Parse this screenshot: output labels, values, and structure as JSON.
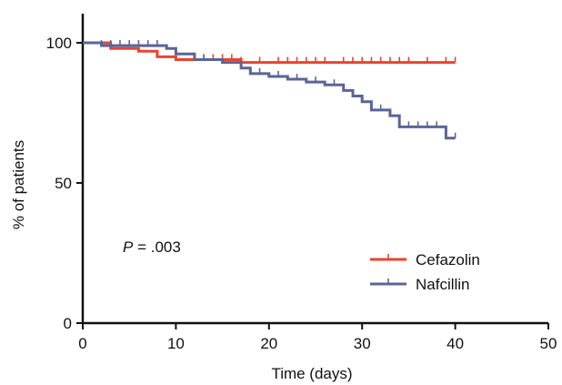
{
  "chart_data": {
    "type": "line",
    "subtype": "kaplan-meier",
    "xlabel": "Time (days)",
    "ylabel": "% of patients",
    "xlim": [
      0,
      50
    ],
    "ylim": [
      0,
      100
    ],
    "xticks": [
      0,
      10,
      20,
      30,
      40,
      50
    ],
    "yticks": [
      0,
      50,
      100
    ],
    "grid": false,
    "legend_position": "bottom-right",
    "annotation": {
      "italic": "P",
      "rest": " = .003"
    },
    "series": [
      {
        "name": "Cefazolin",
        "color": "#e8452e",
        "steps": [
          [
            0,
            100
          ],
          [
            3,
            100
          ],
          [
            3,
            98
          ],
          [
            6,
            98
          ],
          [
            6,
            97
          ],
          [
            8,
            97
          ],
          [
            8,
            95
          ],
          [
            10,
            95
          ],
          [
            10,
            94
          ],
          [
            17,
            94
          ],
          [
            17,
            93
          ],
          [
            40,
            93
          ]
        ],
        "censors": [
          13,
          14,
          15,
          16,
          17,
          19,
          21,
          22,
          23,
          24,
          25,
          26,
          28,
          29,
          30,
          31,
          32,
          33,
          34,
          35,
          37,
          39,
          40
        ]
      },
      {
        "name": "Nafcillin",
        "color": "#5a6496",
        "steps": [
          [
            0,
            100
          ],
          [
            2,
            100
          ],
          [
            2,
            99
          ],
          [
            9,
            99
          ],
          [
            9,
            98
          ],
          [
            10,
            98
          ],
          [
            10,
            96
          ],
          [
            12,
            96
          ],
          [
            12,
            94
          ],
          [
            15,
            94
          ],
          [
            15,
            93
          ],
          [
            17,
            93
          ],
          [
            17,
            91
          ],
          [
            18,
            91
          ],
          [
            18,
            89
          ],
          [
            20,
            89
          ],
          [
            20,
            88
          ],
          [
            22,
            88
          ],
          [
            22,
            87
          ],
          [
            24,
            87
          ],
          [
            24,
            86
          ],
          [
            26,
            86
          ],
          [
            26,
            85
          ],
          [
            28,
            85
          ],
          [
            28,
            83
          ],
          [
            29,
            83
          ],
          [
            29,
            81
          ],
          [
            30,
            81
          ],
          [
            30,
            79
          ],
          [
            31,
            79
          ],
          [
            31,
            76
          ],
          [
            33,
            76
          ],
          [
            33,
            74
          ],
          [
            34,
            74
          ],
          [
            34,
            70
          ],
          [
            39,
            70
          ],
          [
            39,
            66
          ],
          [
            40,
            66
          ]
        ],
        "censors": [
          2,
          3,
          4,
          5,
          6,
          7,
          8,
          13,
          19,
          21,
          23,
          25,
          27,
          30,
          32,
          35,
          36,
          37,
          38,
          40
        ]
      }
    ]
  }
}
